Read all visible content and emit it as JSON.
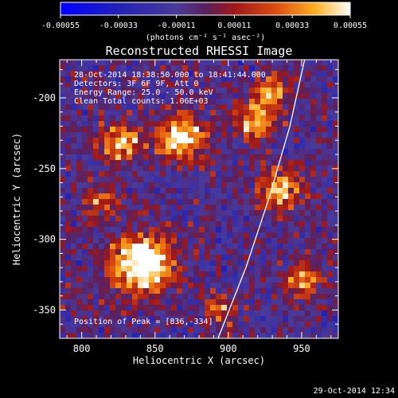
{
  "chart_data": {
    "type": "heatmap",
    "title": "Reconstructed RHESSI Image",
    "xlabel": "Heliocentric X (arcsec)",
    "ylabel": "Heliocentric Y (arcsec)",
    "xlim": [
      785,
      975
    ],
    "ylim": [
      -370,
      -173
    ],
    "x_ticks": [
      800,
      850,
      900,
      950
    ],
    "y_ticks": [
      -350,
      -300,
      -250,
      -200
    ],
    "colorbar": {
      "range": [
        -0.00055,
        0.00055
      ],
      "tick_values": [
        -0.00055,
        -0.00033,
        -0.00011,
        0.00011,
        0.00033,
        0.00055
      ],
      "tick_labels": [
        "-0.00055",
        "-0.00033",
        "-0.00011",
        "0.00011",
        "0.00033",
        "0.00055"
      ],
      "units_label": "(photons cm⁻² s⁻¹ asec⁻²)"
    },
    "annotations": {
      "time": "28-Oct-2014 18:38:50.000 to 18:41:44.000",
      "detectors": "Detectors: 3F 6F 9F, Att 0",
      "energy": "Energy Range: 25.0 - 50.0 keV",
      "clean": "Clean    Total counts: 1.06E+03",
      "peak": "Position of Peak = [836,-334]"
    },
    "peak_position": [
      836,
      -334
    ],
    "emission_sources": [
      {
        "x": 842,
        "y": -318,
        "strength": 1.0,
        "size": 20
      },
      {
        "x": 868,
        "y": -228,
        "strength": 0.75,
        "size": 16
      },
      {
        "x": 827,
        "y": -232,
        "strength": 0.6,
        "size": 14
      },
      {
        "x": 918,
        "y": -215,
        "strength": 0.6,
        "size": 14
      },
      {
        "x": 935,
        "y": -265,
        "strength": 0.55,
        "size": 15
      },
      {
        "x": 952,
        "y": -330,
        "strength": 0.45,
        "size": 14
      },
      {
        "x": 812,
        "y": -275,
        "strength": 0.4,
        "size": 12
      },
      {
        "x": 895,
        "y": -350,
        "strength": 0.35,
        "size": 12
      },
      {
        "x": 930,
        "y": -195,
        "strength": 0.5,
        "size": 12
      }
    ],
    "limb_curve": [
      [
        893,
        -370
      ],
      [
        912,
        -320
      ],
      [
        928,
        -270
      ],
      [
        942,
        -220
      ],
      [
        952,
        -173
      ]
    ],
    "grid": false
  },
  "footer_timestamp": "29-Oct-2014 12:34"
}
